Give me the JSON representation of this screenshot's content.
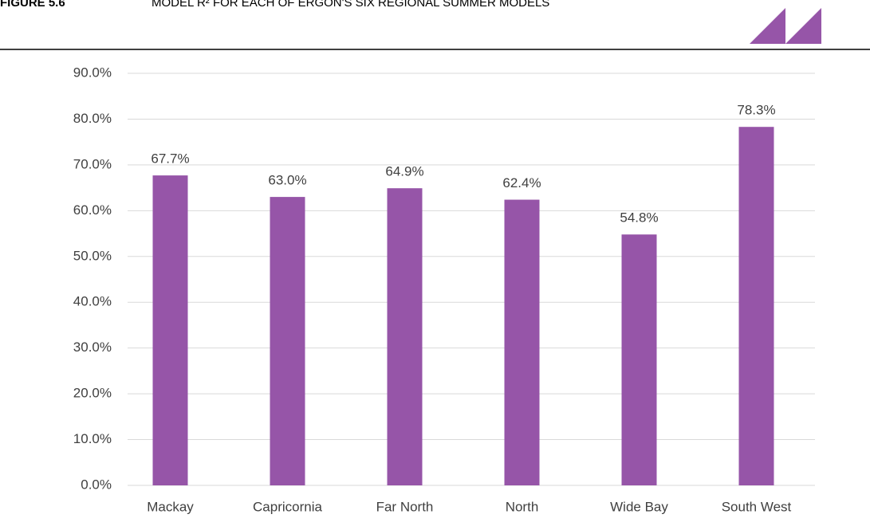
{
  "figure_label": "FIGURE 5.6",
  "chart_data": {
    "type": "bar",
    "title": "MODEL R² FOR EACH OF ERGON'S SIX REGIONAL SUMMER MODELS",
    "categories": [
      "Mackay",
      "Capricornia",
      "Far North",
      "North",
      "Wide Bay",
      "South West"
    ],
    "values": [
      67.7,
      63.0,
      64.9,
      62.4,
      54.8,
      78.3
    ],
    "value_labels": [
      "67.7%",
      "63.0%",
      "64.9%",
      "62.4%",
      "54.8%",
      "78.3%"
    ],
    "color": "#9655a8",
    "ylim": [
      0,
      90
    ],
    "yticks": [
      {
        "value": 0,
        "label": "0.0%"
      },
      {
        "value": 10,
        "label": "10.0%"
      },
      {
        "value": 20,
        "label": "20.0%"
      },
      {
        "value": 30,
        "label": "30.0%"
      },
      {
        "value": 40,
        "label": "40.0%"
      },
      {
        "value": 50,
        "label": "50.0%"
      },
      {
        "value": 60,
        "label": "60.0%"
      },
      {
        "value": 70,
        "label": "70.0%"
      },
      {
        "value": 80,
        "label": "80.0%"
      },
      {
        "value": 90,
        "label": "90.0%"
      }
    ],
    "grid": true
  }
}
